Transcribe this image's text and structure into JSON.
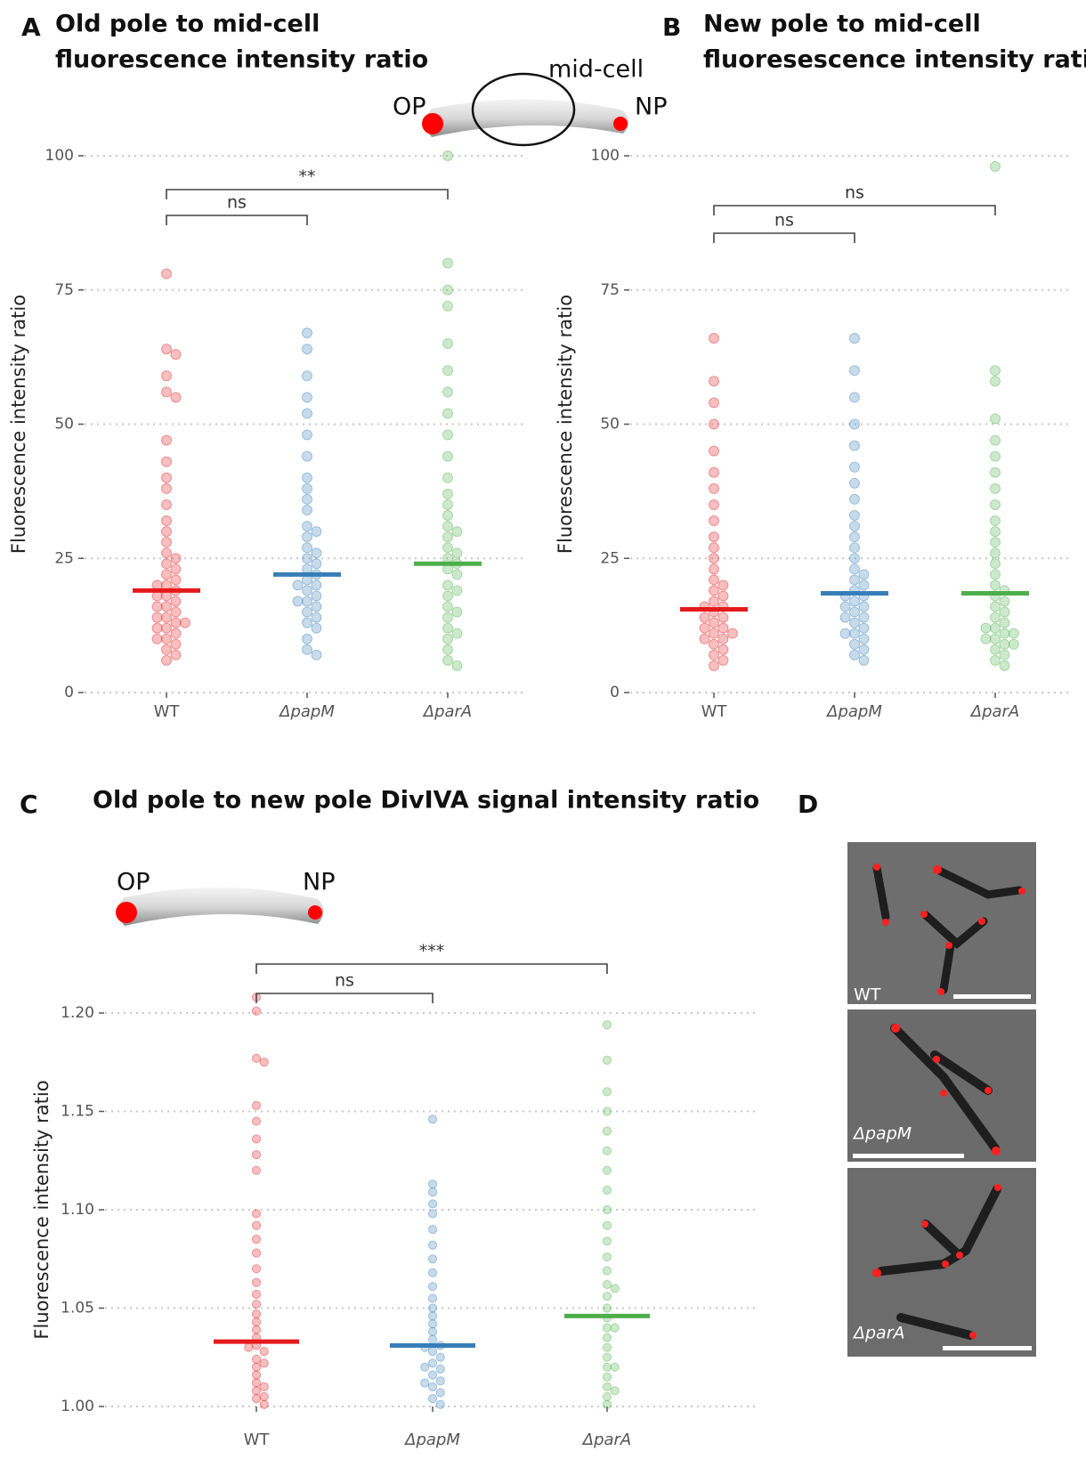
{
  "panel_labels": [
    "A",
    "B",
    "C",
    "D"
  ],
  "diagram_labels": {
    "old_pole": "OP",
    "new_pole": "NP",
    "mid_cell": "mid-cell"
  },
  "micrograph_labels": [
    "WT",
    "ΔpapM",
    "ΔparA"
  ],
  "chart_data": [
    {
      "type": "strip",
      "title": [
        "Old pole to mid-cell",
        "fluorescence intensity ratio"
      ],
      "y_label": "Fluorescence intensity ratio",
      "categories": [
        "WT",
        "ΔpapM",
        "ΔparA"
      ],
      "colors": [
        "#e41a1c",
        "#377eb8",
        "#4daf4a"
      ],
      "ylim": [
        0,
        100
      ],
      "yticks": [
        0,
        25,
        50,
        75,
        100
      ],
      "grid": true,
      "values": [
        [
          78,
          64,
          63,
          59,
          56,
          55,
          47,
          43,
          40,
          38,
          35,
          32,
          30,
          28,
          26,
          24,
          22,
          21,
          20,
          19,
          18,
          17,
          16,
          15,
          14,
          13,
          12,
          12,
          11,
          10,
          9,
          8,
          7,
          6,
          14,
          16,
          18,
          20,
          23,
          25,
          10,
          13
        ],
        [
          67,
          64,
          59,
          55,
          52,
          48,
          44,
          40,
          38,
          36,
          34,
          31,
          29,
          27,
          25,
          24,
          23,
          22,
          21,
          20,
          19,
          18,
          17,
          16,
          15,
          14,
          13,
          12,
          10,
          8,
          7,
          30,
          26,
          20,
          17
        ],
        [
          100,
          80,
          75,
          72,
          65,
          60,
          56,
          52,
          48,
          44,
          40,
          37,
          35,
          33,
          31,
          29,
          27,
          25,
          24,
          23,
          22,
          20,
          18,
          16,
          14,
          12,
          10,
          8,
          6,
          5,
          30,
          26,
          19,
          15,
          11
        ]
      ],
      "medians": [
        19,
        22,
        24
      ],
      "comparisons": [
        {
          "between": [
            0,
            1
          ],
          "label": "ns"
        },
        {
          "between": [
            0,
            2
          ],
          "label": "**"
        }
      ]
    },
    {
      "type": "strip",
      "title": [
        "New pole to mid-cell",
        "fluoresescence intensity ratio"
      ],
      "y_label": "Fluorescence intensity ratio",
      "categories": [
        "WT",
        "ΔpapM",
        "ΔparA"
      ],
      "colors": [
        "#e41a1c",
        "#377eb8",
        "#4daf4a"
      ],
      "ylim": [
        0,
        100
      ],
      "yticks": [
        0,
        25,
        50,
        75,
        100
      ],
      "grid": true,
      "values": [
        [
          66,
          58,
          54,
          50,
          45,
          41,
          38,
          35,
          32,
          29,
          27,
          25,
          23,
          21,
          19,
          18,
          17,
          16,
          15,
          14,
          13,
          12,
          11,
          10,
          9,
          8,
          7,
          6,
          5,
          20,
          16,
          12,
          10,
          14,
          11
        ],
        [
          66,
          60,
          55,
          50,
          46,
          42,
          39,
          36,
          33,
          31,
          29,
          27,
          25,
          23,
          21,
          20,
          19,
          18,
          17,
          16,
          15,
          14,
          13,
          12,
          11,
          10,
          9,
          8,
          7,
          6,
          22,
          18,
          14,
          11,
          16
        ],
        [
          98,
          60,
          58,
          51,
          47,
          44,
          41,
          38,
          35,
          32,
          30,
          28,
          26,
          24,
          22,
          20,
          19,
          18,
          17,
          16,
          15,
          14,
          13,
          12,
          11,
          10,
          9,
          8,
          7,
          6,
          5,
          12,
          10,
          9,
          11
        ]
      ],
      "medians": [
        15.5,
        18.5,
        18.5
      ],
      "comparisons": [
        {
          "between": [
            0,
            1
          ],
          "label": "ns"
        },
        {
          "between": [
            0,
            2
          ],
          "label": "ns"
        }
      ]
    },
    {
      "type": "strip",
      "title": [
        "Old pole to new pole DivIVA signal intensity ratio"
      ],
      "y_label": "Fluorescence intensity ratio",
      "categories": [
        "WT",
        "ΔpapM",
        "ΔparA"
      ],
      "colors": [
        "#e41a1c",
        "#377eb8",
        "#4daf4a"
      ],
      "ylim": [
        1,
        1.2
      ],
      "yticks": [
        {
          "value": 1,
          "label": "1.00"
        },
        1.05,
        {
          "value": 1.1,
          "label": "1.10"
        },
        1.15,
        {
          "value": 1.2,
          "label": "1.20"
        }
      ],
      "grid": true,
      "values": [
        [
          1.208,
          1.201,
          1.177,
          1.175,
          1.153,
          1.145,
          1.136,
          1.128,
          1.12,
          1.098,
          1.092,
          1.085,
          1.078,
          1.07,
          1.063,
          1.057,
          1.052,
          1.047,
          1.043,
          1.039,
          1.035,
          1.031,
          1.028,
          1.024,
          1.02,
          1.016,
          1.012,
          1.008,
          1.004,
          1.001,
          1.03,
          1.022,
          1.01,
          1.005
        ],
        [
          1.146,
          1.113,
          1.109,
          1.103,
          1.098,
          1.09,
          1.082,
          1.075,
          1.068,
          1.061,
          1.055,
          1.05,
          1.046,
          1.042,
          1.038,
          1.034,
          1.031,
          1.028,
          1.025,
          1.022,
          1.019,
          1.016,
          1.013,
          1.01,
          1.007,
          1.004,
          1.001,
          1.03,
          1.02,
          1.012
        ],
        [
          1.194,
          1.176,
          1.16,
          1.15,
          1.14,
          1.13,
          1.12,
          1.11,
          1.1,
          1.092,
          1.084,
          1.076,
          1.069,
          1.062,
          1.056,
          1.05,
          1.045,
          1.04,
          1.035,
          1.03,
          1.025,
          1.02,
          1.015,
          1.01,
          1.005,
          1.001,
          1.06,
          1.04,
          1.02,
          1.008
        ]
      ],
      "medians": [
        1.033,
        1.031,
        1.046
      ],
      "comparisons": [
        {
          "between": [
            0,
            1
          ],
          "label": "ns"
        },
        {
          "between": [
            0,
            2
          ],
          "label": "***"
        }
      ]
    }
  ]
}
